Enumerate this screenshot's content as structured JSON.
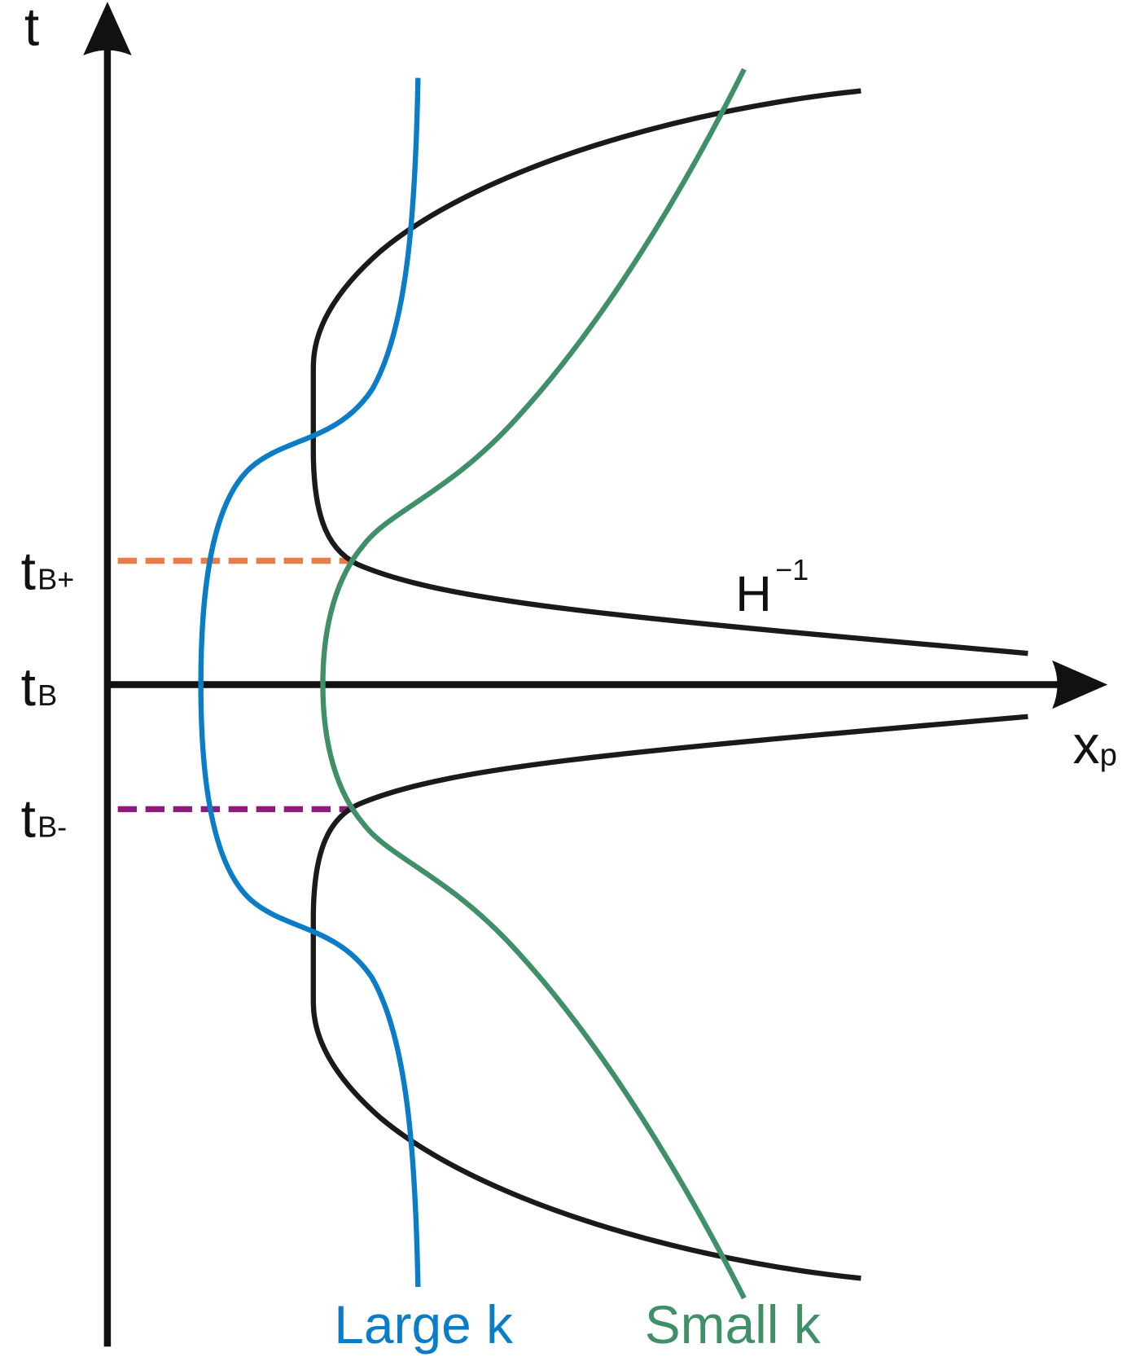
{
  "axes": {
    "y_label": "t",
    "x_label": "x",
    "x_label_sub": "p"
  },
  "ticks": {
    "tB_plus": {
      "main": "t",
      "sub": "B+"
    },
    "tB": {
      "main": "t",
      "sub": "B"
    },
    "tB_minus": {
      "main": "t",
      "sub": "B-"
    }
  },
  "annotation": {
    "base": "H",
    "sup": "−1"
  },
  "legend": {
    "large_k": "Large k",
    "small_k": "Small k"
  },
  "colors": {
    "axis": "#111111",
    "horizon_curve": "#1a1a1a",
    "large_k": "#0a7dc6",
    "small_k": "#3f9068",
    "tB_plus_line": "#e97c48",
    "tB_minus_line": "#8a1c7c"
  }
}
